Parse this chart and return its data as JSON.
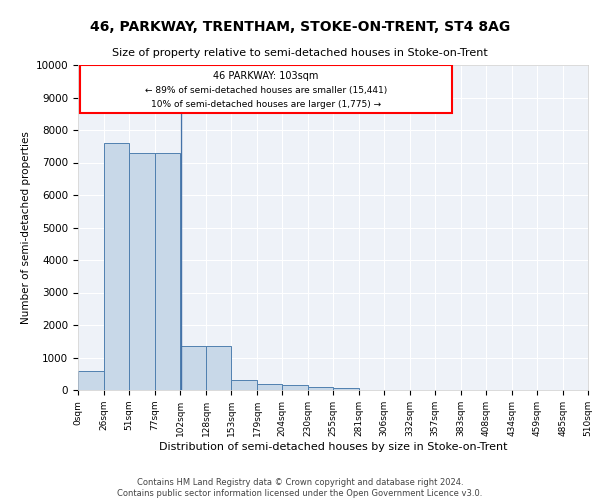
{
  "title": "46, PARKWAY, TRENTHAM, STOKE-ON-TRENT, ST4 8AG",
  "subtitle": "Size of property relative to semi-detached houses in Stoke-on-Trent",
  "xlabel": "Distribution of semi-detached houses by size in Stoke-on-Trent",
  "ylabel": "Number of semi-detached properties",
  "footer_line1": "Contains HM Land Registry data © Crown copyright and database right 2024.",
  "footer_line2": "Contains public sector information licensed under the Open Government Licence v3.0.",
  "annotation_title": "46 PARKWAY: 103sqm",
  "annotation_line1": "← 89% of semi-detached houses are smaller (15,441)",
  "annotation_line2": "10% of semi-detached houses are larger (1,775) →",
  "property_size": 103,
  "bins": [
    0,
    26,
    51,
    77,
    102,
    128,
    153,
    179,
    204,
    230,
    255,
    281,
    306,
    332,
    357,
    383,
    408,
    434,
    459,
    485,
    510
  ],
  "bar_values": [
    580,
    7600,
    7300,
    7300,
    1350,
    1350,
    310,
    170,
    155,
    100,
    60,
    0,
    0,
    0,
    0,
    0,
    0,
    0,
    0,
    0
  ],
  "bar_color": "#c8d8e8",
  "bar_edge_color": "#5080b0",
  "highlight_line_color": "#4472a8",
  "background_color": "#eef2f8",
  "ylim": [
    0,
    10000
  ],
  "yticks": [
    0,
    1000,
    2000,
    3000,
    4000,
    5000,
    6000,
    7000,
    8000,
    9000,
    10000
  ],
  "tick_labels": [
    "0sqm",
    "26sqm",
    "51sqm",
    "77sqm",
    "102sqm",
    "128sqm",
    "153sqm",
    "179sqm",
    "204sqm",
    "230sqm",
    "255sqm",
    "281sqm",
    "306sqm",
    "332sqm",
    "357sqm",
    "383sqm",
    "408sqm",
    "434sqm",
    "459sqm",
    "485sqm",
    "510sqm"
  ]
}
